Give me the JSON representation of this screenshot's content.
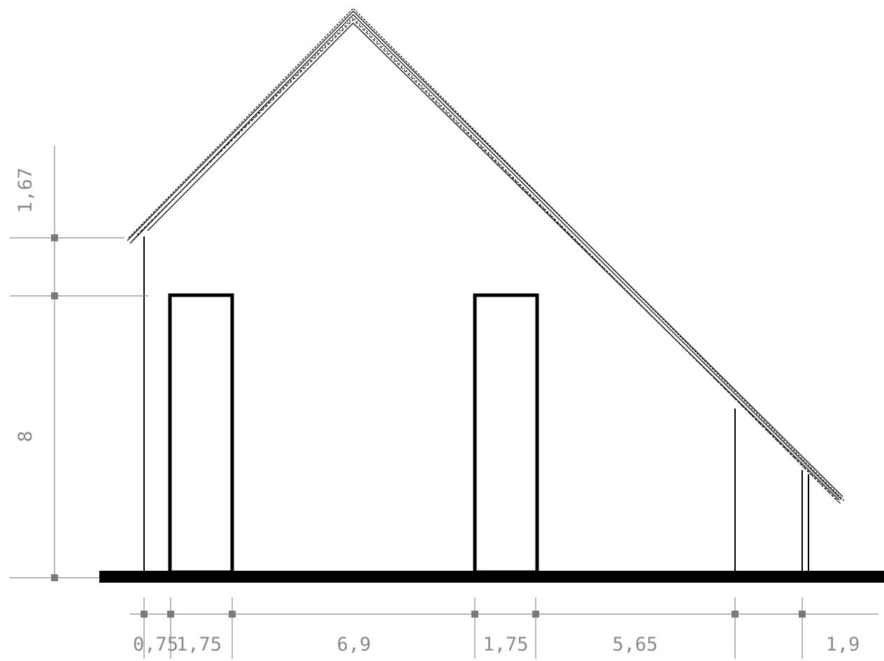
{
  "drawing": {
    "type": "house-elevation",
    "horizontal_dimensions": [
      "0,75",
      "1,75",
      "6,9",
      "1,75",
      "5,65",
      "1,9"
    ],
    "vertical_dimensions": [
      "1,67",
      "8"
    ],
    "colors": {
      "line": "#000000",
      "dimension": "#8a8a8a",
      "ground": "#000000"
    }
  }
}
